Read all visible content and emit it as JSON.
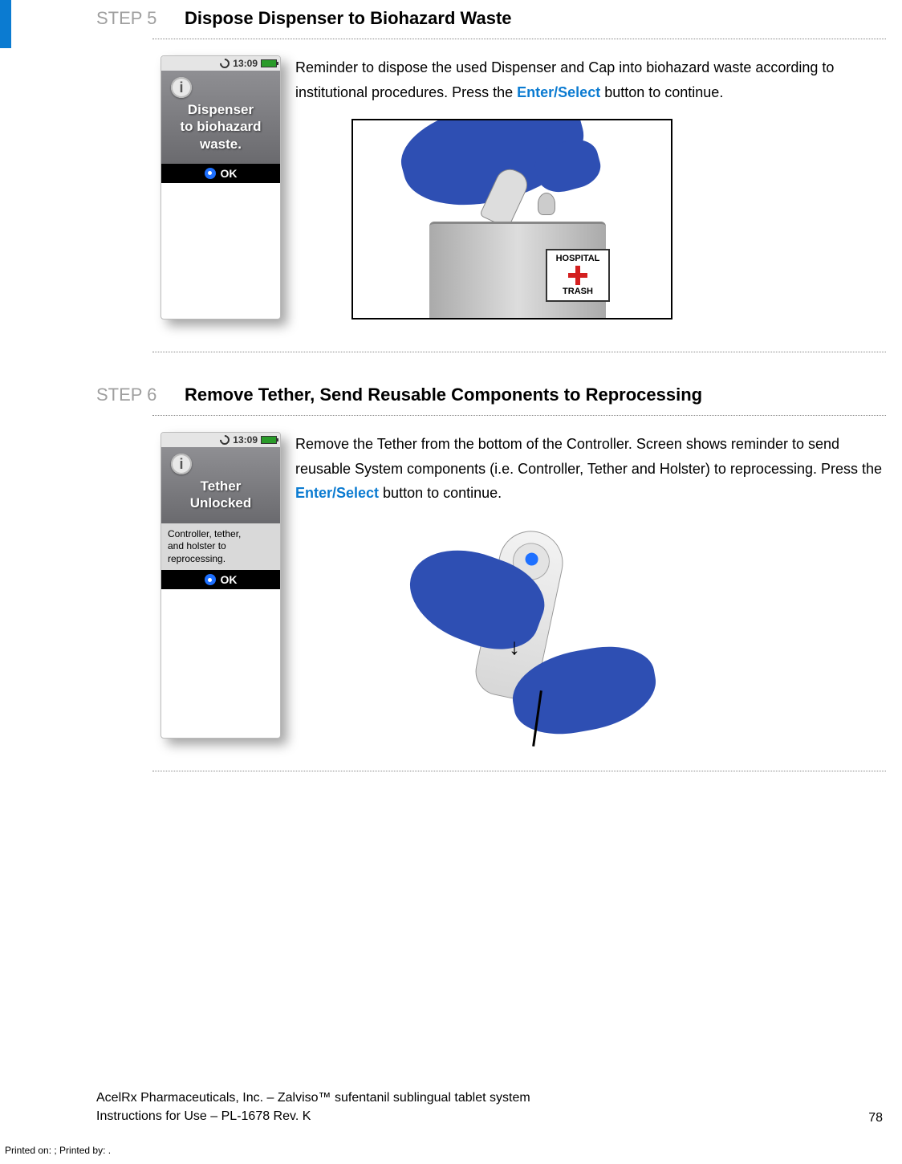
{
  "page": {
    "accent_color": "#0b7bd1",
    "step_label_color": "#9f9f9f",
    "glove_color": "#2e4fb3"
  },
  "steps": [
    {
      "label": "STEP 5",
      "title": "Dispose Dispenser to Biohazard Waste",
      "device": {
        "time": "13:09",
        "info_icon": "i",
        "primary_lines": [
          "Dispenser",
          "to biohazard",
          "waste."
        ],
        "sub_lines": [],
        "ok_label": "OK"
      },
      "paragraph_parts": [
        "Reminder to dispose the used Dispenser and Cap into biohazard waste according to institutional procedures.  Press the ",
        "Enter/Select",
        " button to continue."
      ],
      "can_label_top": "HOSPITAL",
      "can_label_bottom": "TRASH"
    },
    {
      "label": "STEP 6",
      "title": "Remove Tether, Send Reusable Components to Reprocessing",
      "device": {
        "time": "13:09",
        "info_icon": "i",
        "primary_lines": [
          "Tether",
          "Unlocked"
        ],
        "sub_lines": [
          "Controller, tether,",
          "and holster to",
          "reprocessing."
        ],
        "ok_label": "OK"
      },
      "paragraph_parts": [
        "Remove the Tether from the bottom of the Controller.  Screen shows reminder to send reusable System components (i.e. Controller, Tether and Holster) to reprocessing.  Press the ",
        "Enter/Select",
        " button to continue."
      ],
      "arrow": "↓"
    }
  ],
  "footer": {
    "line1": "AcelRx Pharmaceuticals, Inc. – Zalviso™ sufentanil sublingual tablet system",
    "line2": "Instructions for Use – PL-1678 Rev. K",
    "page_number": "78"
  },
  "printed": "Printed on: ; Printed by: ."
}
